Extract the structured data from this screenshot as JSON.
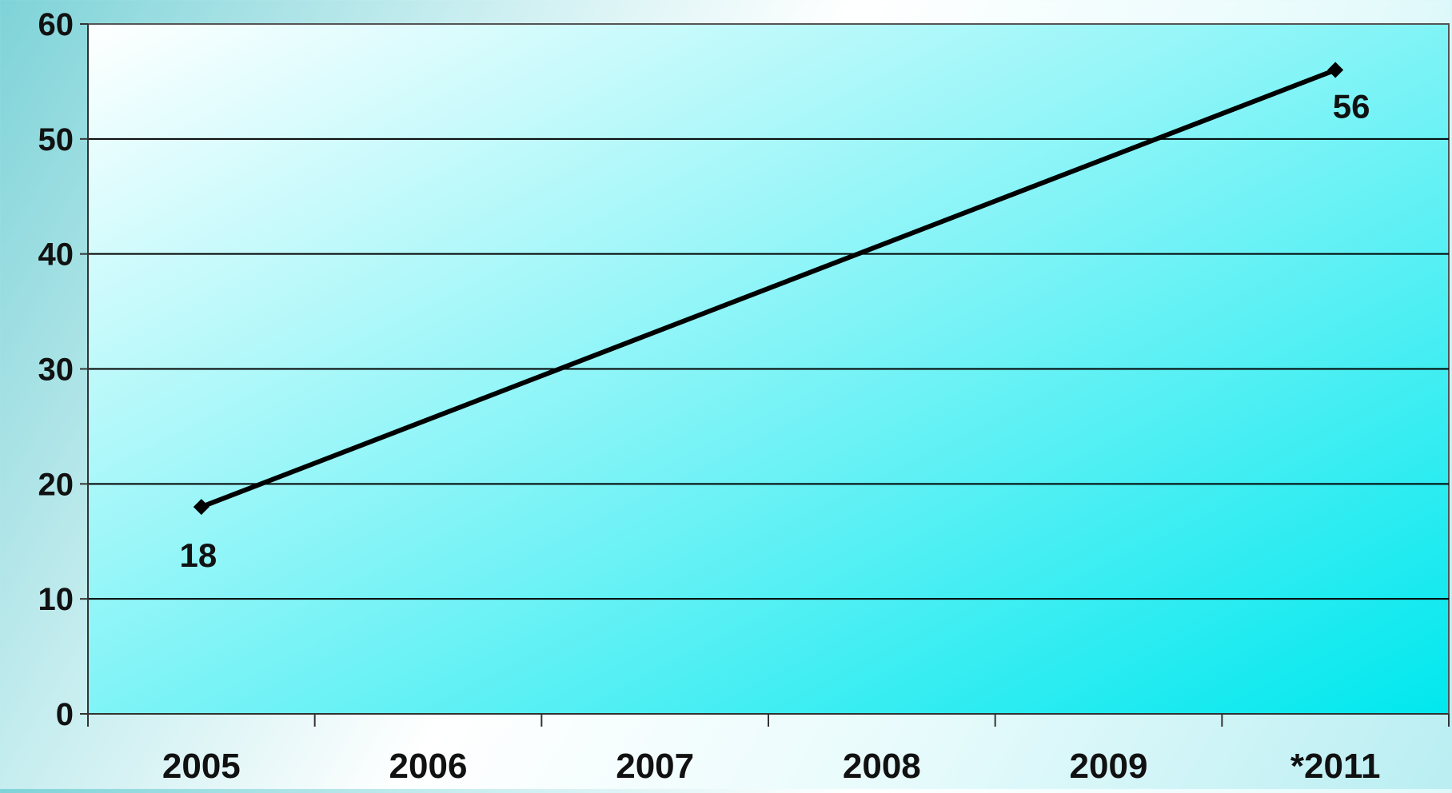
{
  "chart_data": {
    "type": "line",
    "categories": [
      "2005",
      "2006",
      "2007",
      "2008",
      "2009",
      "*2011"
    ],
    "series": [
      {
        "values": [
          18,
          null,
          null,
          null,
          null,
          56
        ],
        "point_labels": [
          "18",
          "",
          "",
          "",
          "",
          "56"
        ]
      }
    ],
    "ylim": [
      0,
      60
    ],
    "yticks": [
      "0",
      "10",
      "20",
      "30",
      "40",
      "50",
      "60"
    ],
    "grid": true,
    "legend": "none",
    "colors": {
      "line": "#000000",
      "plot_top_left": "#ffffff",
      "plot_bottom_right": "#00e8ee"
    }
  }
}
